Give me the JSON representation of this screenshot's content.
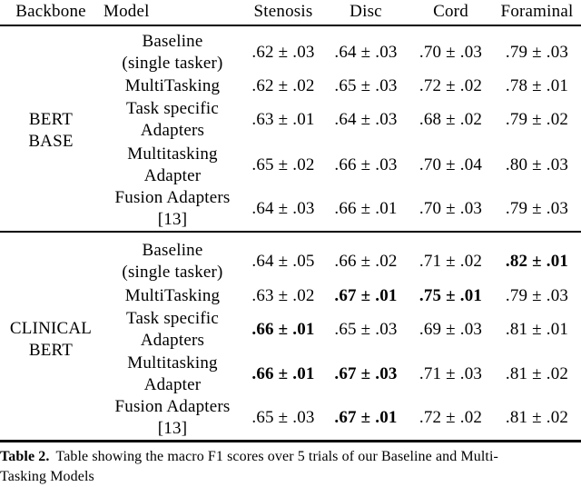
{
  "table": {
    "headers": {
      "backbone": "Backbone",
      "model": "Model",
      "stenosis": "Stenosis",
      "disc": "Disc",
      "cord": "Cord",
      "foraminal": "Foraminal"
    },
    "groups": [
      {
        "backbone": "BERT\nBASE",
        "rows": [
          {
            "model": "Baseline\n(single tasker)",
            "values": [
              {
                "text": ".62 ± .03",
                "bold": false
              },
              {
                "text": ".64 ± .03",
                "bold": false
              },
              {
                "text": ".70 ± .03",
                "bold": false
              },
              {
                "text": ".79 ± .03",
                "bold": false
              }
            ]
          },
          {
            "model": "MultiTasking",
            "values": [
              {
                "text": ".62 ± .02",
                "bold": false
              },
              {
                "text": ".65 ± .03",
                "bold": false
              },
              {
                "text": ".72 ± .02",
                "bold": false
              },
              {
                "text": ".78 ± .01",
                "bold": false
              }
            ]
          },
          {
            "model": "Task specific\nAdapters",
            "values": [
              {
                "text": ".63 ± .01",
                "bold": false
              },
              {
                "text": ".64 ± .03",
                "bold": false
              },
              {
                "text": ".68 ± .02",
                "bold": false
              },
              {
                "text": ".79 ± .02",
                "bold": false
              }
            ]
          },
          {
            "model": "Multitasking\nAdapter",
            "values": [
              {
                "text": ".65 ± .02",
                "bold": false
              },
              {
                "text": ".66 ± .03",
                "bold": false
              },
              {
                "text": ".70 ± .04",
                "bold": false
              },
              {
                "text": ".80 ± .03",
                "bold": false
              }
            ]
          },
          {
            "model": "Fusion Adapters\n[13]",
            "values": [
              {
                "text": ".64 ± .03",
                "bold": false
              },
              {
                "text": ".66 ± .01",
                "bold": false
              },
              {
                "text": ".70 ± .03",
                "bold": false
              },
              {
                "text": ".79 ± .03",
                "bold": false
              }
            ]
          }
        ]
      },
      {
        "backbone": "CLINICAL\nBERT",
        "rows": [
          {
            "model": "Baseline\n(single tasker)",
            "values": [
              {
                "text": ".64 ± .05",
                "bold": false
              },
              {
                "text": ".66 ± .02",
                "bold": false
              },
              {
                "text": ".71 ± .02",
                "bold": false
              },
              {
                "text": ".82 ± .01",
                "bold": true
              }
            ]
          },
          {
            "model": "MultiTasking",
            "values": [
              {
                "text": ".63 ± .02",
                "bold": false
              },
              {
                "text": ".67 ± .01",
                "bold": true
              },
              {
                "text": ".75 ± .01",
                "bold": true
              },
              {
                "text": ".79 ± .03",
                "bold": false
              }
            ]
          },
          {
            "model": "Task specific\nAdapters",
            "values": [
              {
                "text": ".66 ± .01",
                "bold": true
              },
              {
                "text": ".65 ± .03",
                "bold": false
              },
              {
                "text": ".69 ± .03",
                "bold": false
              },
              {
                "text": ".81 ± .01",
                "bold": false
              }
            ]
          },
          {
            "model": "Multitasking\nAdapter",
            "values": [
              {
                "text": ".66 ± .01",
                "bold": true
              },
              {
                "text": ".67 ± .03",
                "bold": true
              },
              {
                "text": ".71 ± .03",
                "bold": false
              },
              {
                "text": ".81 ± .02",
                "bold": false
              }
            ]
          },
          {
            "model": "Fusion Adapters\n[13]",
            "values": [
              {
                "text": ".65 ± .03",
                "bold": false
              },
              {
                "text": ".67 ± .01",
                "bold": true
              },
              {
                "text": ".72 ± .02",
                "bold": false
              },
              {
                "text": ".81 ± .02",
                "bold": false
              }
            ]
          }
        ]
      }
    ]
  },
  "caption": {
    "label": "Table 2.",
    "line1": "Table showing the macro F1 scores over 5 trials of our Baseline and Multi-",
    "line2": "Tasking Models"
  }
}
